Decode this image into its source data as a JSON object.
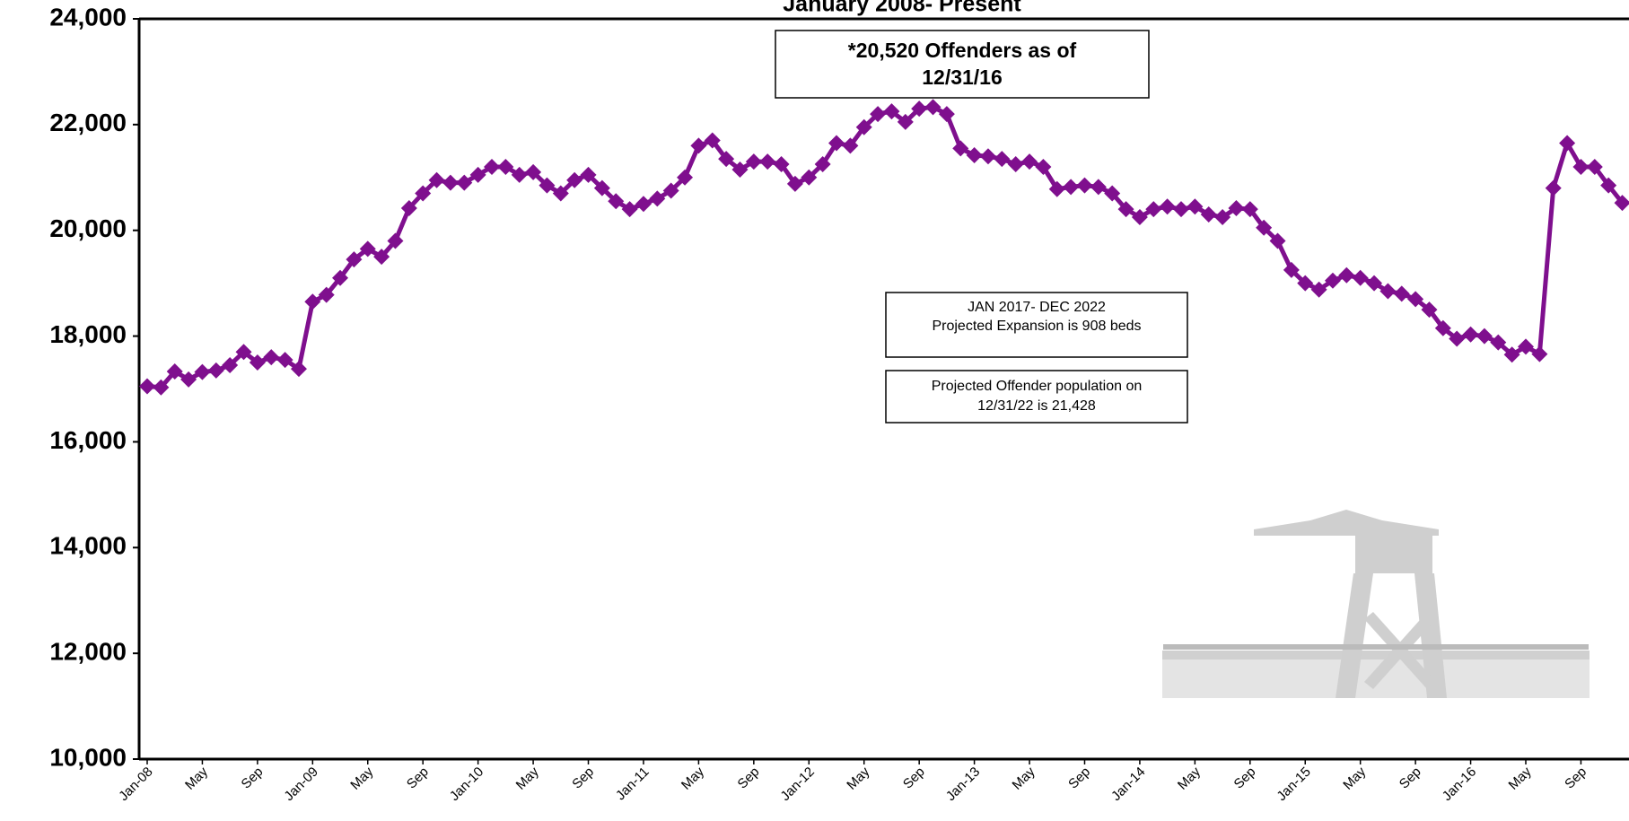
{
  "chart_data": {
    "type": "line",
    "title": "January 2008- Present",
    "categories": [
      "Jan-08",
      null,
      null,
      null,
      "May",
      null,
      null,
      null,
      "Sep",
      null,
      null,
      null,
      "Jan-09",
      null,
      null,
      null,
      "May",
      null,
      null,
      null,
      "Sep",
      null,
      null,
      null,
      "Jan-10",
      null,
      null,
      null,
      "May",
      null,
      null,
      null,
      "Sep",
      null,
      null,
      null,
      "Jan-11",
      null,
      null,
      null,
      "May",
      null,
      null,
      null,
      "Sep",
      null,
      null,
      null,
      "Jan-12",
      null,
      null,
      null,
      "May",
      null,
      null,
      null,
      "Sep",
      null,
      null,
      null,
      "Jan-13",
      null,
      null,
      null,
      "May",
      null,
      null,
      null,
      "Sep",
      null,
      null,
      null,
      "Jan-14",
      null,
      null,
      null,
      "May",
      null,
      null,
      null,
      "Sep",
      null,
      null,
      null,
      "Jan-15",
      null,
      null,
      null,
      "May",
      null,
      null,
      null,
      "Sep",
      null,
      null,
      null,
      "Jan-16",
      null,
      null,
      null,
      "May",
      null,
      null,
      null,
      "Sep",
      null,
      null,
      null
    ],
    "series": [
      {
        "color": "#7f0f8e",
        "values": [
          17050,
          17030,
          17330,
          17180,
          17320,
          17350,
          17450,
          17700,
          17500,
          17600,
          17550,
          17380,
          18650,
          18780,
          19100,
          19450,
          19650,
          19500,
          19800,
          20420,
          20700,
          20950,
          20900,
          20900,
          21050,
          21200,
          21200,
          21050,
          21100,
          20850,
          20700,
          20950,
          21050,
          20800,
          20550,
          20400,
          20500,
          20600,
          20750,
          21000,
          21600,
          21700,
          21350,
          21150,
          21300,
          21300,
          21250,
          20880,
          21000,
          21250,
          21650,
          21600,
          21950,
          22200,
          22250,
          22050,
          22300,
          22330,
          22200,
          21550,
          21420,
          21400,
          21350,
          21250,
          21300,
          21200,
          20780,
          20820,
          20850,
          20820,
          20700,
          20400,
          20250,
          20400,
          20450,
          20400,
          20450,
          20300,
          20250,
          20420,
          20400,
          20050,
          19800,
          19250,
          19000,
          18880,
          19050,
          19150,
          19100,
          19000,
          18850,
          18800,
          18700,
          18500,
          18150,
          17950,
          18030,
          18000,
          17880,
          17650,
          17800,
          17660,
          20800,
          21650,
          21200,
          21200,
          20850,
          20520
        ]
      }
    ],
    "ylim": [
      10000,
      24000
    ],
    "yticks": [
      {
        "value": 10000,
        "label": "10,000"
      },
      {
        "value": 12000,
        "label": "12,000"
      },
      {
        "value": 14000,
        "label": "14,000"
      },
      {
        "value": 16000,
        "label": "16,000"
      },
      {
        "value": 18000,
        "label": "18,000"
      },
      {
        "value": 20000,
        "label": "20,000"
      },
      {
        "value": 22000,
        "label": "22,000"
      },
      {
        "value": 24000,
        "label": "24,000"
      }
    ],
    "annotations": [
      {
        "lines": [
          "*20,520 Offenders as of",
          "12/31/16"
        ]
      },
      {
        "lines": [
          "JAN 2017- DEC 2022",
          "Projected Expansion is 908 beds"
        ]
      },
      {
        "lines": [
          "Projected Offender population on",
          "12/31/22 is 21,428"
        ]
      }
    ]
  }
}
